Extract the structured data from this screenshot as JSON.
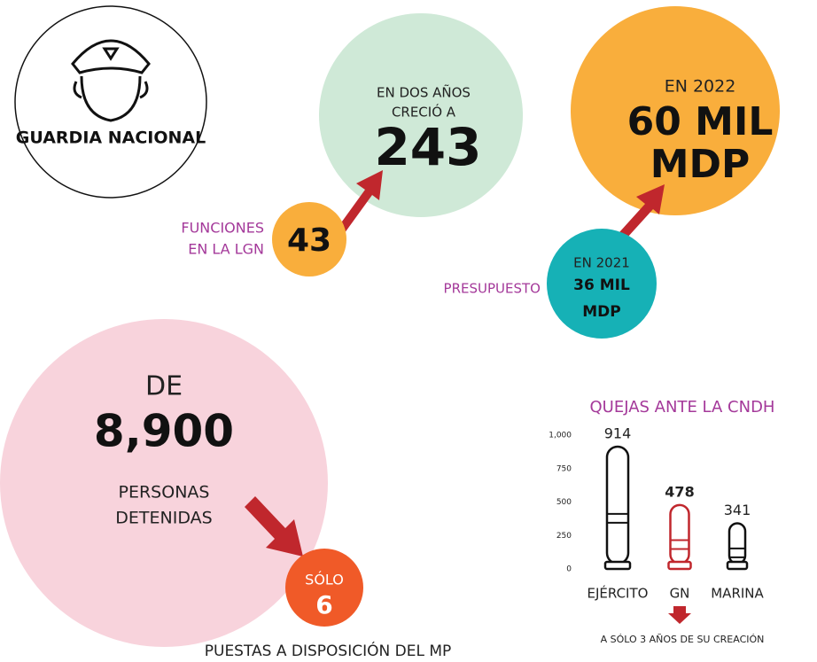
{
  "header": {
    "title": "GUARDIA NACIONAL"
  },
  "functions": {
    "label": [
      "FUNCIONES",
      "EN LA LGN"
    ],
    "before": "43",
    "after_caption": [
      "EN DOS AÑOS",
      "CRECIÓ A"
    ],
    "after": "243"
  },
  "budget": {
    "label": "PRESUPUESTO",
    "before_caption": "EN 2021",
    "before": [
      "36 MIL",
      "MDP"
    ],
    "after_caption": "EN 2022",
    "after": [
      "60 MIL",
      "MDP"
    ]
  },
  "detentions": {
    "prefix": "DE",
    "total": "8,900",
    "total_caption": [
      "PERSONAS",
      "DETENIDAS"
    ],
    "result_caption": "SÓLO",
    "result": "6",
    "footer": "PUESTAS A DISPOSICIÓN DEL MP"
  },
  "chart_data": {
    "type": "bar",
    "title": "QUEJAS ANTE LA CNDH",
    "categories": [
      "EJÉRCITO",
      "GN",
      "MARINA"
    ],
    "values": [
      914,
      478,
      341
    ],
    "colors": [
      "#111111",
      "#c0272d",
      "#111111"
    ],
    "ylim": [
      0,
      1000
    ],
    "yticks": [
      0,
      250,
      500,
      750,
      {
        "value": 1000,
        "label": "1,000"
      }
    ],
    "annotation": "A SÓLO 3 AÑOS DE SU CREACIÓN"
  }
}
